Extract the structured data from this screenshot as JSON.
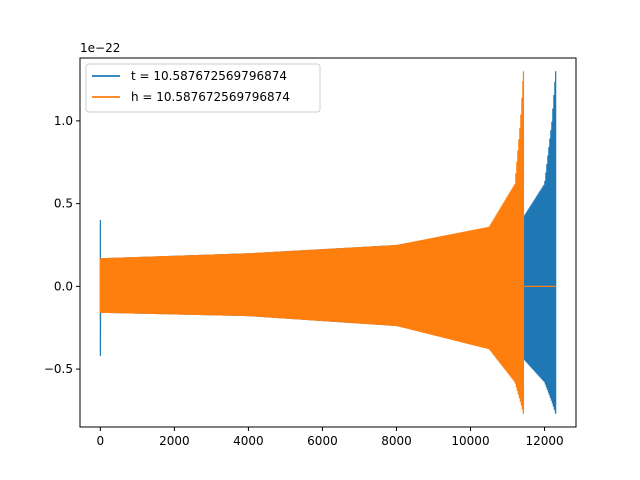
{
  "chart_data": {
    "type": "line",
    "title": "",
    "xlabel": "",
    "ylabel": "",
    "offset_text": "1e−22",
    "xlim": [
      -550,
      12850
    ],
    "ylim": [
      -0.85,
      1.38
    ],
    "xticks": [
      0,
      2000,
      4000,
      6000,
      8000,
      10000,
      12000
    ],
    "xtick_labels": [
      "0",
      "2000",
      "4000",
      "6000",
      "8000",
      "10000",
      "12000"
    ],
    "yticks": [
      -0.5,
      0.0,
      0.5,
      1.0
    ],
    "ytick_labels": [
      "−0.5",
      "0.0",
      "0.5",
      "1.0"
    ],
    "grid": false,
    "legend_position": "upper-left",
    "series": [
      {
        "name": "t = 10.587672569796874",
        "color": "#1f77b4",
        "kind": "chirp",
        "start": 0,
        "merger": 12300,
        "initial_spike": {
          "min": -0.42,
          "max": 0.4
        },
        "envelope": [
          {
            "x": 0,
            "upper": 0.17,
            "lower": -0.16
          },
          {
            "x": 4000,
            "upper": 0.2,
            "lower": -0.18
          },
          {
            "x": 8000,
            "upper": 0.25,
            "lower": -0.24
          },
          {
            "x": 11000,
            "upper": 0.36,
            "lower": -0.38
          },
          {
            "x": 11430,
            "upper": 0.42,
            "lower": -0.44
          },
          {
            "x": 12000,
            "upper": 0.62,
            "lower": -0.58
          },
          {
            "x": 12200,
            "upper": 1.0,
            "lower": -0.7
          },
          {
            "x": 12300,
            "upper": 1.3,
            "lower": -0.77
          }
        ],
        "after_merger": 0.0
      },
      {
        "name": "h = 10.587672569796874",
        "color": "#ff7f0e",
        "kind": "chirp",
        "start": 0,
        "merger": 11430,
        "initial_spike": {
          "min": -0.16,
          "max": 0.17
        },
        "envelope": [
          {
            "x": 0,
            "upper": 0.17,
            "lower": -0.16
          },
          {
            "x": 4000,
            "upper": 0.2,
            "lower": -0.18
          },
          {
            "x": 8000,
            "upper": 0.25,
            "lower": -0.24
          },
          {
            "x": 10500,
            "upper": 0.36,
            "lower": -0.38
          },
          {
            "x": 11200,
            "upper": 0.62,
            "lower": -0.58
          },
          {
            "x": 11350,
            "upper": 1.0,
            "lower": -0.7
          },
          {
            "x": 11430,
            "upper": 1.3,
            "lower": -0.77
          }
        ],
        "after_merger": 0.0,
        "flat_until": 12300
      }
    ]
  }
}
